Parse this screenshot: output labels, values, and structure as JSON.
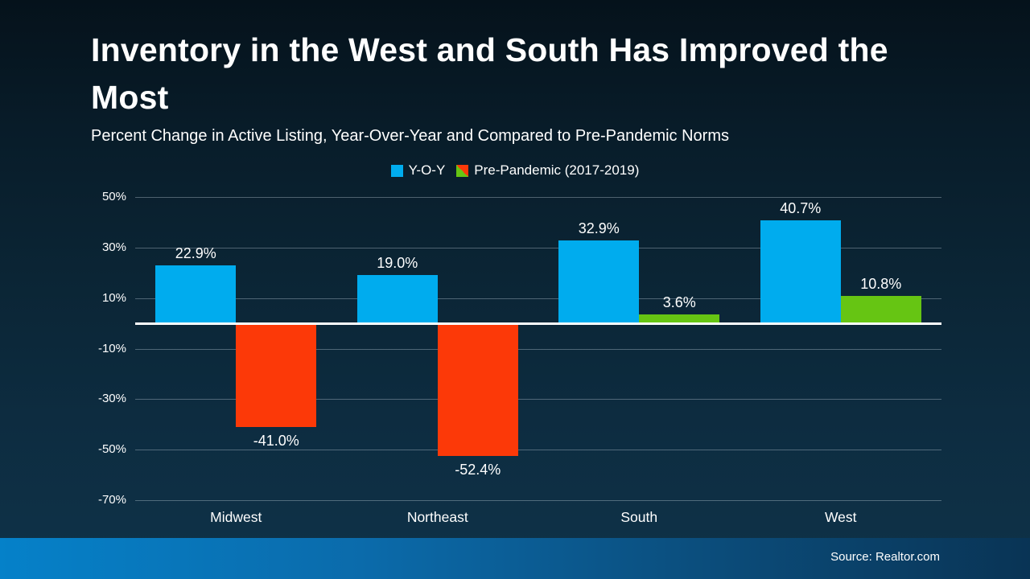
{
  "chart_data": {
    "type": "bar",
    "title": "Inventory in the West and South Has Improved the Most",
    "subtitle": "Percent Change in Active Listing, Year-Over-Year and Compared to Pre-Pandemic Norms",
    "categories": [
      "Midwest",
      "Northeast",
      "South",
      "West"
    ],
    "series": [
      {
        "name": "Y-O-Y",
        "color": "#00ACEE",
        "values": [
          22.9,
          19.0,
          32.9,
          40.7
        ],
        "labels": [
          "22.9%",
          "19.0%",
          "32.9%",
          "40.7%"
        ]
      },
      {
        "name": "Pre-Pandemic (2017-2019)",
        "color_positive": "#66C513",
        "color_negative": "#FC3908",
        "values": [
          -41.0,
          -52.4,
          3.6,
          10.8
        ],
        "labels": [
          "-41.0%",
          "-52.4%",
          "3.6%",
          "10.8%"
        ]
      }
    ],
    "y_axis": {
      "max": 50,
      "min": -70,
      "ticks": [
        50,
        30,
        10,
        -10,
        -30,
        -50,
        -70
      ],
      "tick_labels": [
        "50%",
        "30%",
        "10%",
        "-10%",
        "-30%",
        "-50%",
        "-70%"
      ],
      "gridlines": true,
      "zero_line_color": "#FFFFFF"
    },
    "legend_position": "top-center",
    "text_color": "#FFFFFF"
  },
  "footer": {
    "source": "Source: Realtor.com"
  }
}
